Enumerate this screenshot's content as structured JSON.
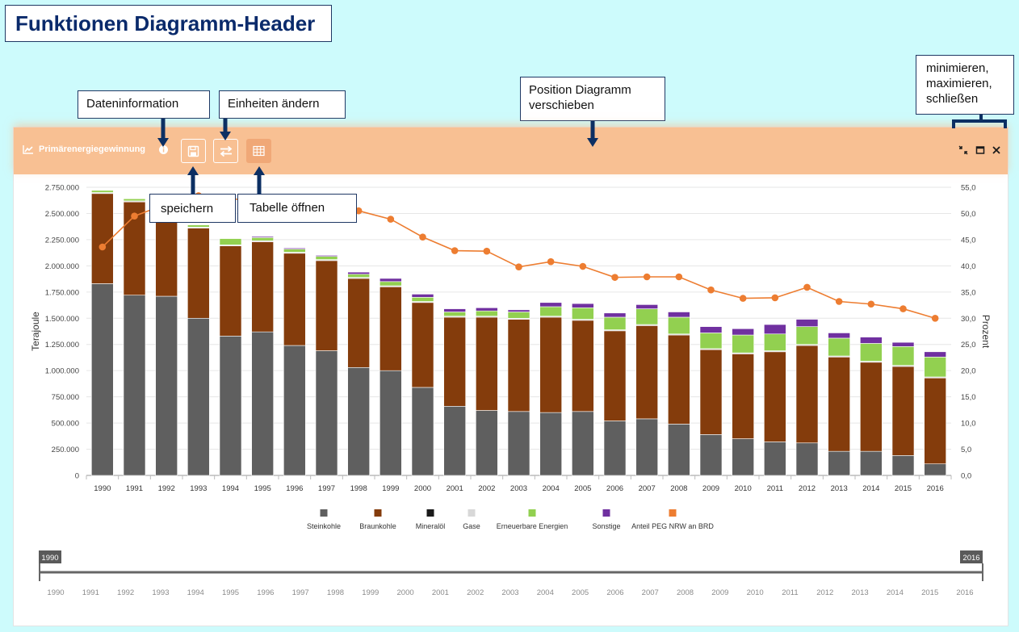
{
  "page_title": "Funktionen Diagramm-Header",
  "callouts": {
    "dateninformation": "Dateninformation",
    "einheiten": "Einheiten ändern",
    "position_line1": "Position Diagramm",
    "position_line2": "verschieben",
    "window_line1": "minimieren,",
    "window_line2": "maximieren,",
    "window_line3": "schließen",
    "speichern": "speichern",
    "tabelle": "Tabelle öffnen"
  },
  "header": {
    "title": "Primärenergiegewinnung",
    "bar_color": "#f8c093",
    "icons": [
      "line-chart-icon",
      "info-icon",
      "save-icon",
      "swap-units-icon",
      "table-icon",
      "minimize-icon",
      "maximize-icon",
      "close-icon"
    ]
  },
  "chart_data": {
    "type": "bar",
    "stacked": true,
    "categories": [
      "1990",
      "1991",
      "1992",
      "1993",
      "1994",
      "1995",
      "1996",
      "1997",
      "1998",
      "1999",
      "2000",
      "2001",
      "2002",
      "2003",
      "2004",
      "2005",
      "2006",
      "2007",
      "2008",
      "2009",
      "2010",
      "2011",
      "2012",
      "2013",
      "2014",
      "2015",
      "2016"
    ],
    "ylabel": "Terajoule",
    "y2label": "Prozent",
    "ylim": [
      0,
      2750000
    ],
    "y2lim": [
      0,
      55
    ],
    "y_ticks": [
      "0",
      "250.000",
      "500.000",
      "750.000",
      "1.000.000",
      "1.250.000",
      "1.500.000",
      "1.750.000",
      "2.000.000",
      "2.250.000",
      "2.500.000",
      "2.750.000"
    ],
    "y2_ticks": [
      "0,0",
      "5,0",
      "10,0",
      "15,0",
      "20,0",
      "25,0",
      "30,0",
      "35,0",
      "40,0",
      "45,0",
      "50,0",
      "55,0"
    ],
    "grid": true,
    "legend_position": "bottom",
    "series": [
      {
        "name": "Steinkohle",
        "color": "#5f5f5f",
        "values": [
          1830000,
          1720000,
          1710000,
          1500000,
          1330000,
          1370000,
          1240000,
          1190000,
          1030000,
          1000000,
          840000,
          660000,
          620000,
          610000,
          600000,
          610000,
          520000,
          540000,
          490000,
          390000,
          350000,
          320000,
          310000,
          230000,
          230000,
          190000,
          110000
        ]
      },
      {
        "name": "Braunkohle",
        "color": "#843c0c",
        "values": [
          860000,
          890000,
          880000,
          860000,
          860000,
          860000,
          880000,
          860000,
          850000,
          800000,
          810000,
          850000,
          890000,
          880000,
          910000,
          870000,
          860000,
          890000,
          850000,
          810000,
          810000,
          860000,
          930000,
          900000,
          850000,
          850000,
          820000
        ]
      },
      {
        "name": "Mineralöl",
        "color": "#1a1a1a",
        "values": [
          0,
          0,
          0,
          0,
          0,
          0,
          0,
          0,
          0,
          0,
          0,
          0,
          0,
          0,
          0,
          0,
          0,
          0,
          0,
          0,
          0,
          0,
          0,
          0,
          0,
          0,
          0
        ]
      },
      {
        "name": "Gase",
        "color": "#d8d8d8",
        "values": [
          10000,
          10000,
          10000,
          10000,
          10000,
          10000,
          10000,
          10000,
          10000,
          10000,
          10000,
          10000,
          10000,
          10000,
          10000,
          10000,
          10000,
          10000,
          10000,
          10000,
          10000,
          10000,
          10000,
          10000,
          10000,
          10000,
          10000
        ]
      },
      {
        "name": "Erneuerbare Energien",
        "color": "#92d050",
        "values": [
          20000,
          20000,
          20000,
          20000,
          60000,
          30000,
          30000,
          30000,
          30000,
          40000,
          40000,
          40000,
          50000,
          60000,
          90000,
          110000,
          120000,
          150000,
          160000,
          150000,
          170000,
          160000,
          170000,
          170000,
          170000,
          180000,
          190000
        ]
      },
      {
        "name": "Sonstige",
        "color": "#7030a0",
        "values": [
          0,
          0,
          0,
          0,
          0,
          10000,
          10000,
          10000,
          20000,
          30000,
          30000,
          30000,
          30000,
          20000,
          40000,
          40000,
          40000,
          40000,
          50000,
          60000,
          60000,
          90000,
          70000,
          50000,
          60000,
          40000,
          50000
        ]
      }
    ],
    "line_series": {
      "name": "Anteil PEG NRW an BRD",
      "color": "#ed7d31",
      "axis": "right",
      "values": [
        43.6,
        49.5,
        51.8,
        53.4,
        52.8,
        52.4,
        52.3,
        51.6,
        50.5,
        48.9,
        45.5,
        42.9,
        42.8,
        39.8,
        40.8,
        39.9,
        37.8,
        37.9,
        37.9,
        35.4,
        33.8,
        33.9,
        35.9,
        33.2,
        32.7,
        31.8,
        30.0
      ]
    }
  },
  "range_slider": {
    "start_label": "1990",
    "end_label": "2016",
    "years": [
      "1990",
      "1991",
      "1992",
      "1993",
      "1994",
      "1995",
      "1996",
      "1997",
      "1998",
      "1999",
      "2000",
      "2001",
      "2002",
      "2003",
      "2004",
      "2005",
      "2006",
      "2007",
      "2008",
      "2009",
      "2010",
      "2011",
      "2012",
      "2013",
      "2014",
      "2015",
      "2016"
    ]
  }
}
